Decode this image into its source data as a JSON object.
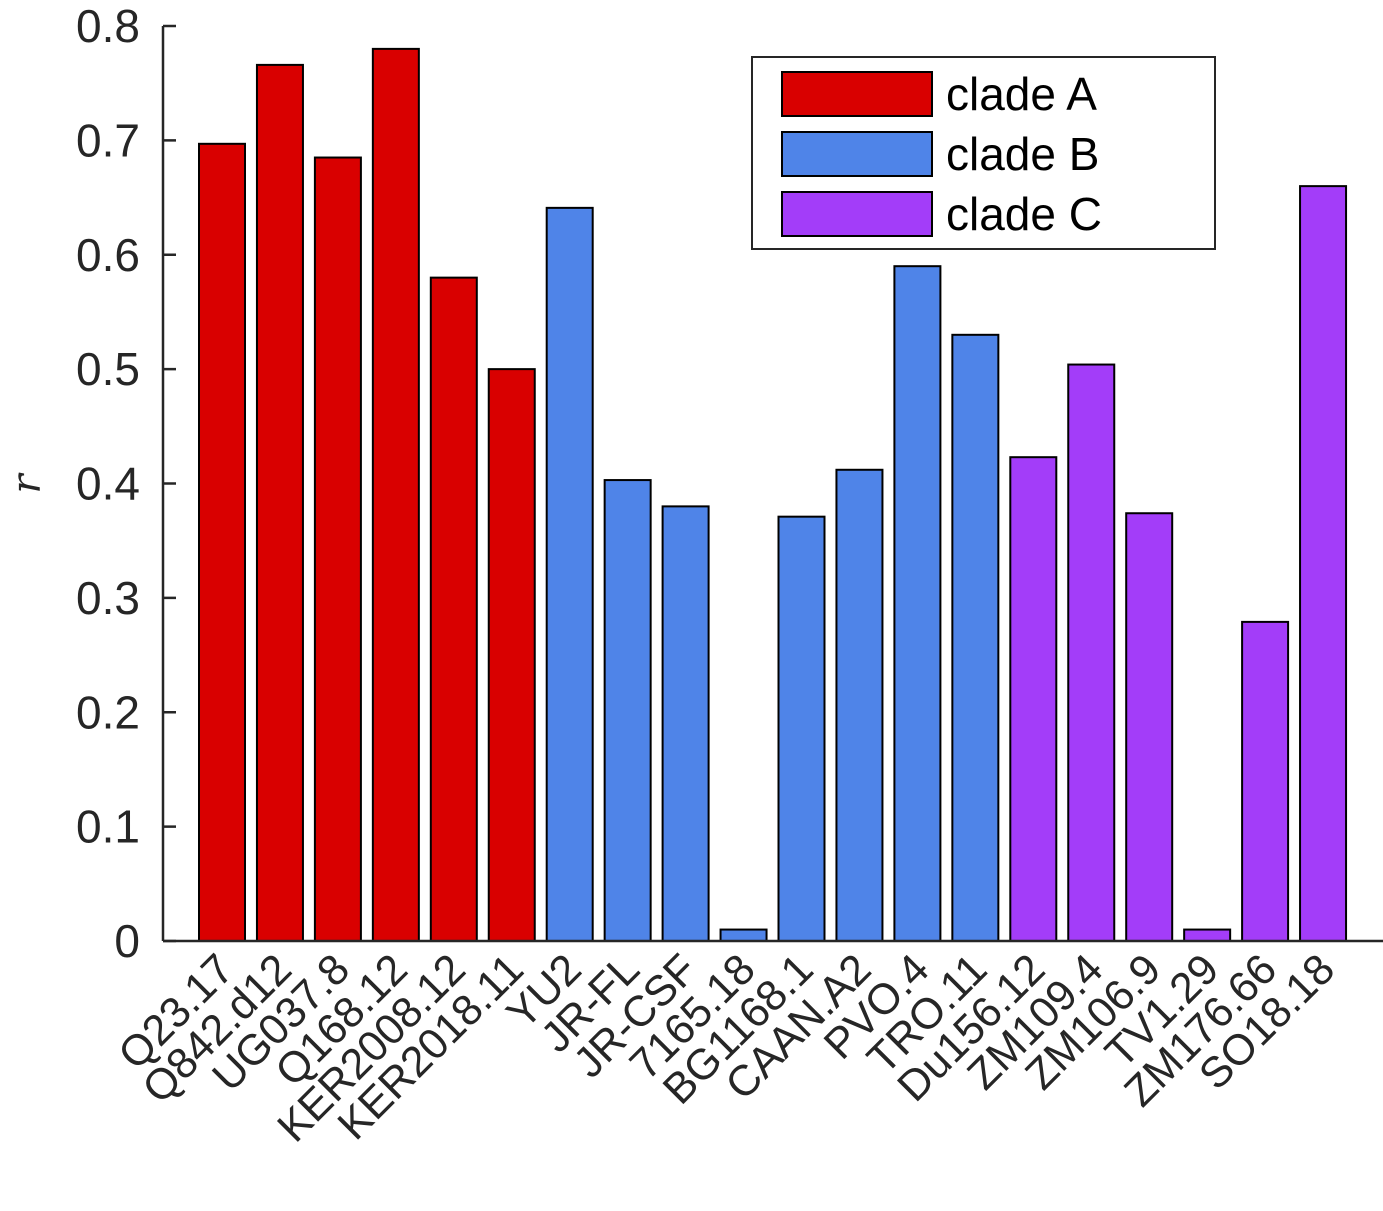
{
  "chart_data": {
    "type": "bar",
    "title": "",
    "xlabel": "",
    "ylabel": "r",
    "ylim": [
      0,
      0.8
    ],
    "yticks": [
      "0",
      "0.1",
      "0.2",
      "0.3",
      "0.4",
      "0.5",
      "0.6",
      "0.7",
      "0.8"
    ],
    "grid": false,
    "legend_position": "top-right",
    "categories": [
      "Q23.17",
      "Q842.d12",
      "UG037.8",
      "Q168.12",
      "KER2008.12",
      "KER2018.11",
      "YU2",
      "JR-FL",
      "JR-CSF",
      "7165.18",
      "BG1168.1",
      "CAAN.A2",
      "PVO.4",
      "TRO.11",
      "Du156.12",
      "ZM109.4",
      "ZM106.9",
      "TV1.29",
      "ZM176.66",
      "SO18.18"
    ],
    "values": [
      0.697,
      0.766,
      0.685,
      0.78,
      0.58,
      0.5,
      0.641,
      0.403,
      0.38,
      0.01,
      0.371,
      0.412,
      0.59,
      0.53,
      0.423,
      0.504,
      0.374,
      0.01,
      0.279,
      0.66
    ],
    "bar_series": [
      "clade A",
      "clade A",
      "clade A",
      "clade A",
      "clade A",
      "clade A",
      "clade B",
      "clade B",
      "clade B",
      "clade B",
      "clade B",
      "clade B",
      "clade B",
      "clade B",
      "clade C",
      "clade C",
      "clade C",
      "clade C",
      "clade C",
      "clade C"
    ],
    "series": [
      {
        "name": "clade A",
        "color": "#d90000"
      },
      {
        "name": "clade B",
        "color": "#4f84e8"
      },
      {
        "name": "clade C",
        "color": "#a33df9"
      }
    ]
  }
}
